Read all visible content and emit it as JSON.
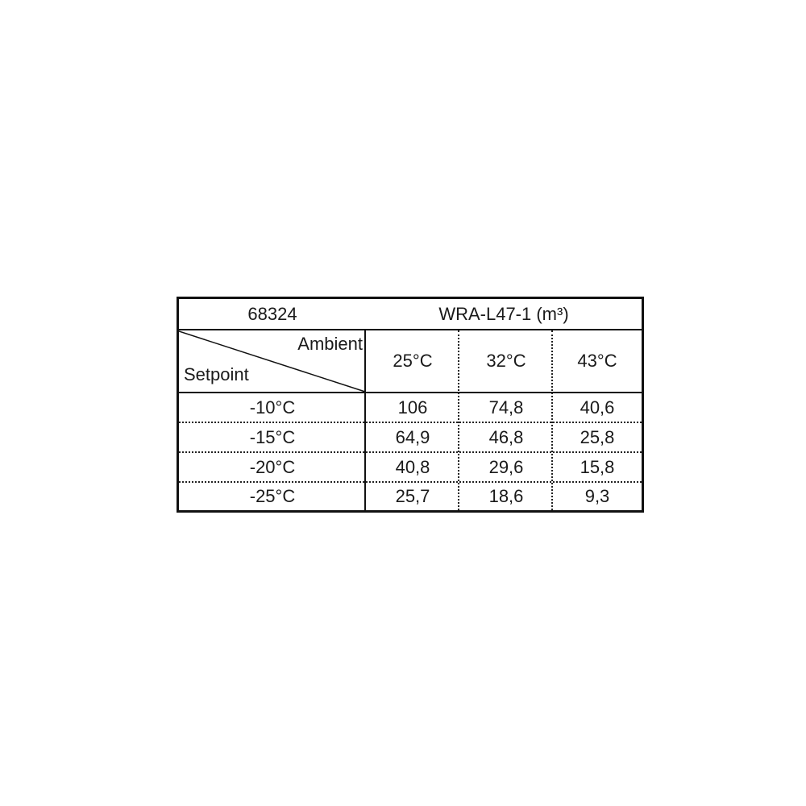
{
  "table": {
    "model_code": "68324",
    "title": "WRA-L47-1  (m³)",
    "corner_top_label": "Ambient",
    "corner_bottom_label": "Setpoint",
    "columns": [
      "25°C",
      "32°C",
      "43°C"
    ],
    "rows": [
      {
        "setpoint": "-10°C",
        "values": [
          "106",
          "74,8",
          "40,6"
        ]
      },
      {
        "setpoint": "-15°C",
        "values": [
          "64,9",
          "46,8",
          "25,8"
        ]
      },
      {
        "setpoint": "-20°C",
        "values": [
          "40,8",
          "29,6",
          "15,8"
        ]
      },
      {
        "setpoint": "-25°C",
        "values": [
          "25,7",
          "18,6",
          "9,3"
        ]
      }
    ]
  }
}
